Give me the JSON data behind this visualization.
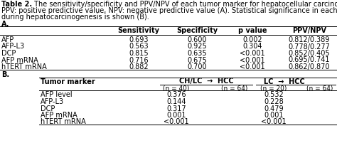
{
  "title_bold": "Table 2.",
  "title_rest": " The sensitivity/specificity and PPV/NPV of each tumor marker for hepatocellular carcinoma are shown.",
  "subtitle1": "PPV: positive predictive value, NPV: negative predictive value (A). Statistical significance in each tumor marker",
  "subtitle2": "during hepatocarcinogenesis is shown (B).",
  "section_A": "A.",
  "section_B": "B.",
  "table_A_headers": [
    "Sensitivity",
    "Specificity",
    "p value",
    "PPV/NPV"
  ],
  "table_A_rows": [
    [
      "AFP",
      "0.693",
      "0.600",
      "0.002",
      "0.812/0.389"
    ],
    [
      "AFP-L3",
      "0.563",
      "0.925",
      "0.304",
      "0.778/0.277"
    ],
    [
      "DCP",
      "0.815",
      "0.635",
      "<0.001",
      "0.852/0.405"
    ],
    [
      "AFP mRNA",
      "0.716",
      "0.675",
      "<0.001",
      "0.695/0.741"
    ],
    [
      "hTERT mRNA",
      "0.882",
      "0.700",
      "<0.001",
      "0.862/0.870"
    ]
  ],
  "table_B_rows": [
    [
      "AFP level",
      "0.376",
      "0.532"
    ],
    [
      "AFP-L3",
      "0.144",
      "0.228"
    ],
    [
      "DCP",
      "0.317",
      "0.479"
    ],
    [
      "AFP mRNA",
      "0.001",
      "0.001"
    ],
    [
      "hTERT mRNA",
      "<0.001",
      "<0.001"
    ]
  ],
  "font_family": "DejaVu Sans",
  "bg_color": "#ffffff",
  "text_color": "#000000",
  "fs": 7.0
}
